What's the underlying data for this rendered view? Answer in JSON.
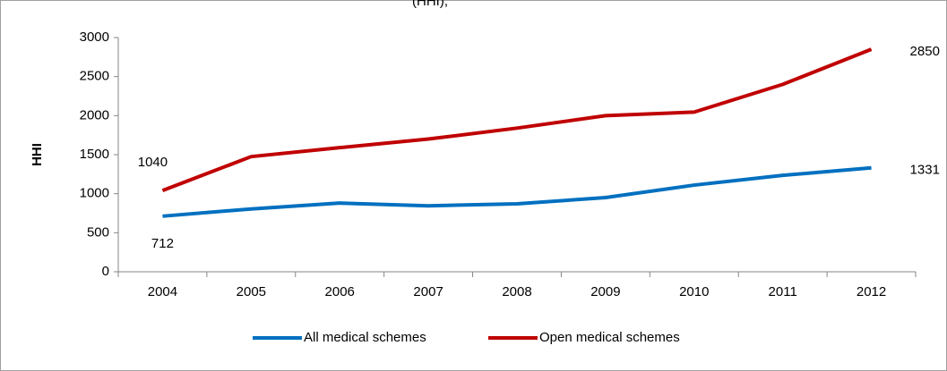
{
  "chart_data": {
    "type": "line",
    "title": "(HHI),",
    "y_label": "HHI",
    "categories": [
      "2004",
      "2005",
      "2006",
      "2007",
      "2008",
      "2009",
      "2010",
      "2011",
      "2012"
    ],
    "series": [
      {
        "name": "All medical schemes",
        "color": "#0070c0",
        "values": [
          712,
          805,
          880,
          845,
          870,
          950,
          1110,
          1235,
          1331
        ]
      },
      {
        "name": "Open medical schemes",
        "color": "#c00000",
        "values": [
          1040,
          1475,
          1590,
          1700,
          1840,
          2000,
          2045,
          2400,
          2850
        ]
      }
    ],
    "ylim": [
      0,
      3000
    ],
    "yticks": [
      0,
      500,
      1000,
      1500,
      2000,
      2500,
      3000
    ],
    "grid": false,
    "legend": "bottom"
  }
}
